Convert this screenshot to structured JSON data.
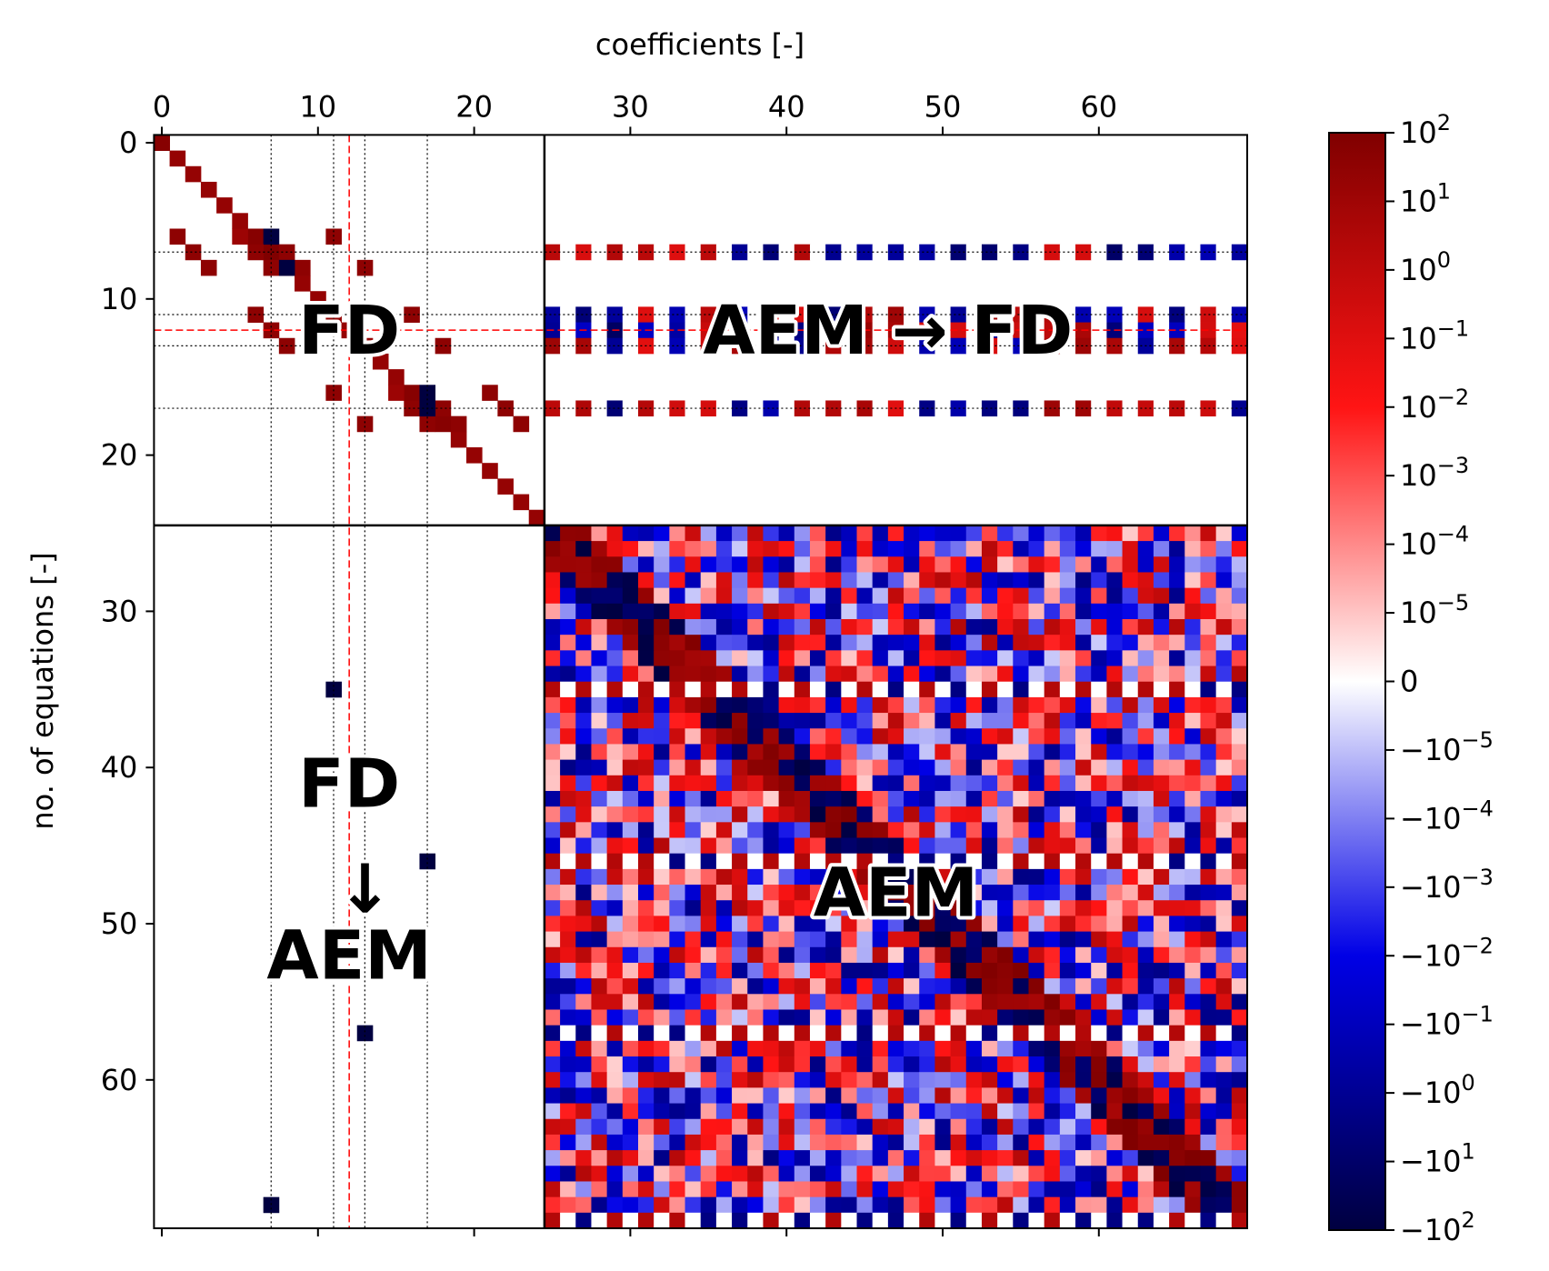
{
  "chart_data": {
    "type": "heatmap",
    "xlabel": "coefficients [-]",
    "ylabel": "no. of equations [-]",
    "x_ticks": [
      0,
      10,
      20,
      30,
      40,
      50,
      60
    ],
    "y_ticks": [
      0,
      10,
      20,
      30,
      40,
      50,
      60
    ],
    "x_range": [
      -0.5,
      69.5
    ],
    "y_range": [
      -0.5,
      69.5
    ],
    "block_split": 24.5,
    "dotted_lines": [
      7,
      11,
      13,
      17
    ],
    "dashed_line": 12,
    "colorbar": {
      "scale": "symlog",
      "ticks": [
        "10^2",
        "10^1",
        "10^0",
        "10^-1",
        "10^-2",
        "10^-3",
        "10^-4",
        "10^-5",
        "0",
        "-10^-5",
        "-10^-4",
        "-10^-3",
        "-10^-2",
        "-10^-1",
        "-10^0",
        "-10^1",
        "-10^2"
      ],
      "colormap": "seismic",
      "colors": {
        "max": "#800000",
        "mid": "#ffffff",
        "min": "#000040"
      }
    },
    "regions": [
      {
        "name": "FD",
        "label": "FD"
      },
      {
        "name": "AEM→FD",
        "label": "AEM → FD"
      },
      {
        "name": "FD→AEM",
        "label_top": "FD",
        "arrow": "↓",
        "label_bottom": "AEM"
      },
      {
        "name": "AEM",
        "label": "AEM"
      }
    ],
    "fd_block_nonzeros": [
      [
        0,
        0,
        1.8
      ],
      [
        1,
        1,
        1.4
      ],
      [
        2,
        2,
        1.4
      ],
      [
        3,
        3,
        1.4
      ],
      [
        4,
        4,
        1.4
      ],
      [
        5,
        5,
        1.4
      ],
      [
        6,
        6,
        1.8
      ],
      [
        7,
        7,
        2.0
      ],
      [
        8,
        8,
        1.8
      ],
      [
        9,
        9,
        1.4
      ],
      [
        10,
        10,
        1.4
      ],
      [
        11,
        11,
        1.4
      ],
      [
        12,
        12,
        1.4
      ],
      [
        13,
        13,
        1.4
      ],
      [
        14,
        14,
        1.4
      ],
      [
        15,
        15,
        1.4
      ],
      [
        16,
        16,
        1.8
      ],
      [
        17,
        17,
        2.0
      ],
      [
        18,
        18,
        1.8
      ],
      [
        19,
        19,
        1.4
      ],
      [
        20,
        20,
        1.4
      ],
      [
        21,
        21,
        1.4
      ],
      [
        22,
        22,
        1.4
      ],
      [
        23,
        23,
        1.4
      ],
      [
        24,
        24,
        1.4
      ],
      [
        6,
        5,
        1.2
      ],
      [
        6,
        7,
        -2.0
      ],
      [
        6,
        11,
        1.6
      ],
      [
        7,
        6,
        1.6
      ],
      [
        7,
        8,
        1.6
      ],
      [
        8,
        7,
        1.6
      ],
      [
        8,
        9,
        1.6
      ],
      [
        8,
        3,
        1.6
      ],
      [
        8,
        13,
        1.6
      ],
      [
        7,
        2,
        1.6
      ],
      [
        6,
        1,
        1.6
      ],
      [
        11,
        6,
        1.6
      ],
      [
        11,
        16,
        1.6
      ],
      [
        12,
        7,
        1.6
      ],
      [
        13,
        8,
        1.6
      ],
      [
        13,
        18,
        1.6
      ],
      [
        16,
        11,
        1.6
      ],
      [
        16,
        15,
        1.2
      ],
      [
        16,
        17,
        -2.0
      ],
      [
        16,
        21,
        1.6
      ],
      [
        17,
        16,
        1.6
      ],
      [
        17,
        18,
        1.6
      ],
      [
        17,
        22,
        1.6
      ],
      [
        18,
        17,
        1.6
      ],
      [
        18,
        19,
        1.6
      ],
      [
        18,
        13,
        1.6
      ],
      [
        18,
        23,
        1.6
      ],
      [
        8,
        8,
        -2.0
      ],
      [
        17,
        17,
        -2.0
      ]
    ],
    "fd_to_aem_nonzeros": [
      [
        35,
        11,
        -2.0
      ],
      [
        46,
        17,
        -2.0
      ],
      [
        57,
        13,
        -2.0
      ],
      [
        68,
        7,
        -2.0
      ]
    ],
    "aem_to_fd_rows": [
      7,
      11,
      12,
      13,
      17
    ]
  }
}
